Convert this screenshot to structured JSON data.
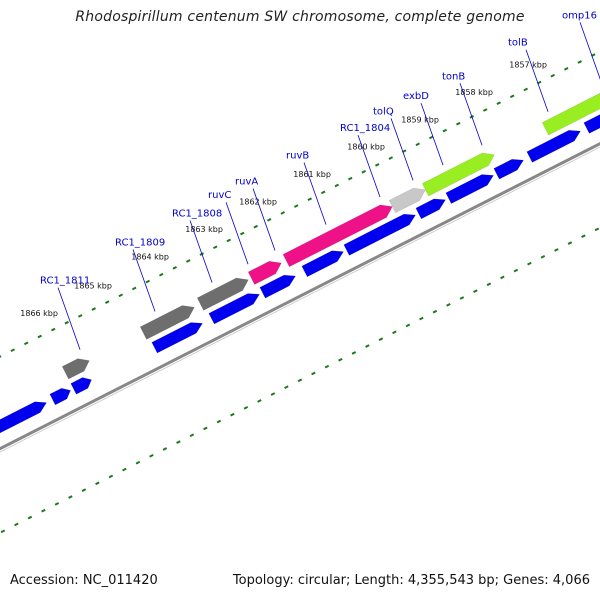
{
  "header": {
    "title": "Rhodospirillum centenum SW chromosome, complete genome"
  },
  "footer": {
    "accession": "Accession: NC_011420",
    "topology": "Topology: circular; Length: 4,355,543 bp; Genes: 4,066"
  },
  "colors": {
    "gene_label": "#0000cc",
    "cds": "#0000ee",
    "grey_gene": "#6e6e6e",
    "light_grey_gene": "#c8c8c8",
    "magenta_gene": "#ee1188",
    "lime_gene": "#99ee22",
    "olive_gene": "#667711",
    "tick": "#1a7a1a",
    "backbone": "#888888"
  },
  "kbp_marks": [
    {
      "label": "1866 kbp",
      "t": 0.13
    },
    {
      "label": "1865 kbp",
      "t": 0.22
    },
    {
      "label": "1864 kbp",
      "t": 0.315
    },
    {
      "label": "1863 kbp",
      "t": 0.405
    },
    {
      "label": "1862 kbp",
      "t": 0.495
    },
    {
      "label": "1861 kbp",
      "t": 0.585
    },
    {
      "label": "1860 kbp",
      "t": 0.675
    },
    {
      "label": "1859 kbp",
      "t": 0.765
    },
    {
      "label": "1858 kbp",
      "t": 0.855
    },
    {
      "label": "1857 kbp",
      "t": 0.945
    }
  ],
  "gene_labels": [
    {
      "name": "RC1_1811",
      "t": 0.15,
      "color": "#0000cc"
    },
    {
      "name": "RC1_1809",
      "t": 0.275,
      "color": "#0000cc"
    },
    {
      "name": "RC1_1808",
      "t": 0.37,
      "color": "#0000cc"
    },
    {
      "name": "ruvC",
      "t": 0.43,
      "color": "#0000cc"
    },
    {
      "name": "ruvA",
      "t": 0.475,
      "color": "#0000cc"
    },
    {
      "name": "ruvB",
      "t": 0.56,
      "color": "#0000cc"
    },
    {
      "name": "RC1_1804",
      "t": 0.65,
      "color": "#0000cc"
    },
    {
      "name": "tolQ",
      "t": 0.705,
      "color": "#0000cc"
    },
    {
      "name": "exbD",
      "t": 0.755,
      "color": "#0000cc"
    },
    {
      "name": "tonB",
      "t": 0.82,
      "color": "#0000cc"
    },
    {
      "name": "tolB",
      "t": 0.93,
      "color": "#0000cc"
    },
    {
      "name": "omp16",
      "t": 1.02,
      "color": "#0000cc"
    }
  ],
  "features_top": [
    {
      "name": "RC1_1811",
      "t0": 0.115,
      "t1": 0.155,
      "color": "#6e6e6e"
    },
    {
      "name": "RC1_1809",
      "t0": 0.245,
      "t1": 0.33,
      "color": "#6e6e6e"
    },
    {
      "name": "RC1_1808",
      "t0": 0.34,
      "t1": 0.42,
      "color": "#6e6e6e"
    },
    {
      "name": "ruvC",
      "t0": 0.425,
      "t1": 0.475,
      "color": "#ee1188"
    },
    {
      "name": "ruvA",
      "t0": 0.483,
      "t1": 0.66,
      "color": "#ee1188"
    },
    {
      "name": "RC1_1804",
      "t0": 0.66,
      "t1": 0.715,
      "color": "#c8c8c8"
    },
    {
      "name": "tolQ",
      "t0": 0.715,
      "t1": 0.83,
      "color": "#99ee22"
    },
    {
      "name": "tolB",
      "t0": 0.915,
      "t1": 1.05,
      "color": "#99ee22"
    },
    {
      "name": "omp16",
      "t0": 1.065,
      "t1": 1.12,
      "color": "#667711"
    }
  ],
  "features_bottom": [
    {
      "t0": -0.02,
      "t1": 0.07
    },
    {
      "t0": 0.08,
      "t1": 0.11
    },
    {
      "t0": 0.115,
      "t1": 0.145
    },
    {
      "t0": 0.25,
      "t1": 0.33
    },
    {
      "t0": 0.345,
      "t1": 0.425
    },
    {
      "t0": 0.43,
      "t1": 0.485
    },
    {
      "t0": 0.5,
      "t1": 0.565
    },
    {
      "t0": 0.57,
      "t1": 0.685
    },
    {
      "t0": 0.69,
      "t1": 0.735
    },
    {
      "t0": 0.74,
      "t1": 0.815
    },
    {
      "t0": 0.82,
      "t1": 0.865
    },
    {
      "t0": 0.875,
      "t1": 0.96
    },
    {
      "t0": 0.97,
      "t1": 1.13
    }
  ]
}
